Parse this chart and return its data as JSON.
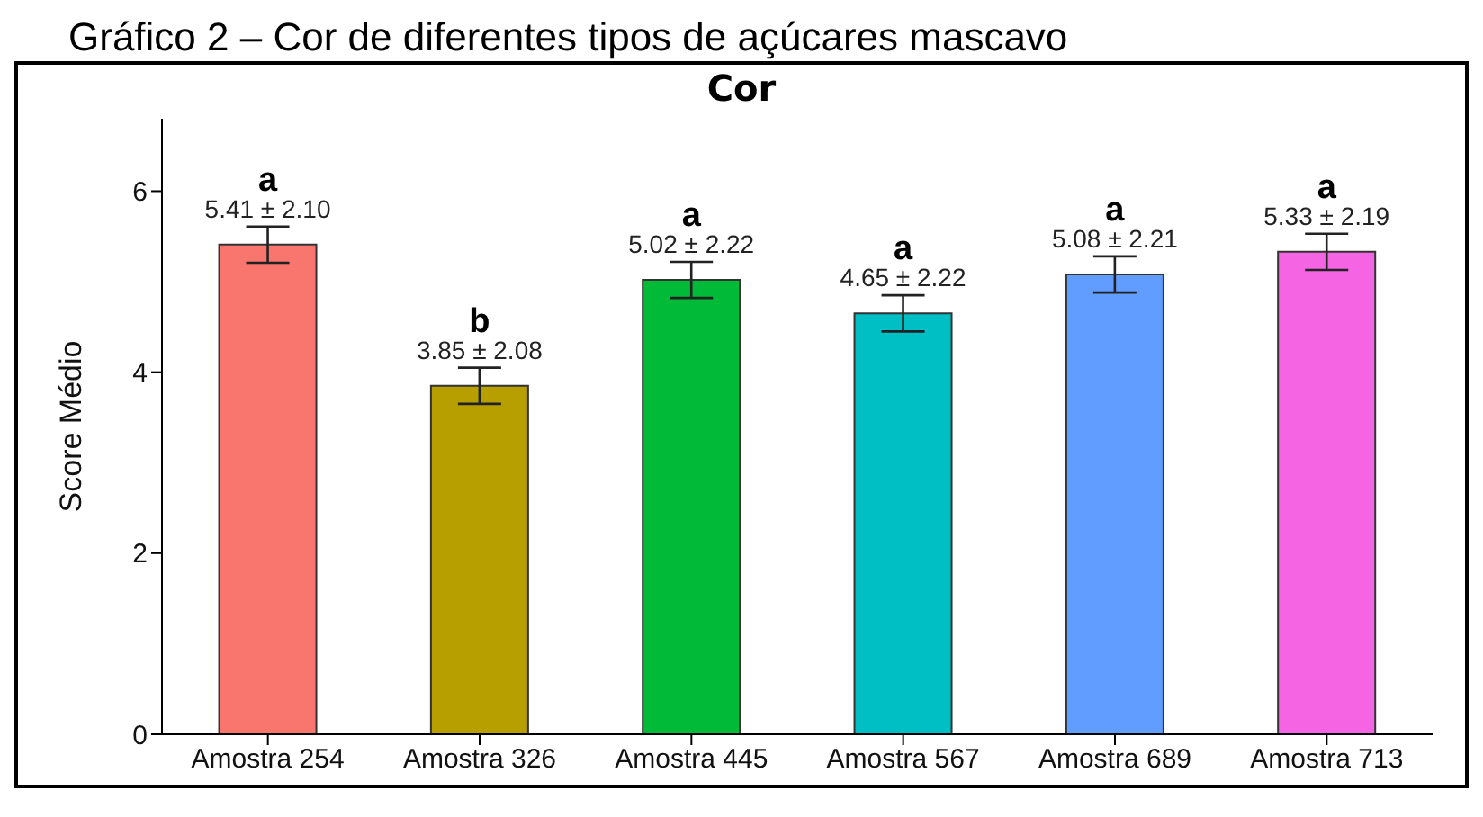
{
  "chart_data": {
    "type": "bar",
    "title": "Gráfico 2 – Cor de diferentes tipos de açúcares mascavo",
    "subtitle": "Cor",
    "ylabel": "Score Médio",
    "categories": [
      "Amostra 254",
      "Amostra 326",
      "Amostra 445",
      "Amostra 567",
      "Amostra 689",
      "Amostra 713"
    ],
    "values": [
      5.41,
      3.85,
      5.02,
      4.65,
      5.08,
      5.33
    ],
    "colors": [
      "#f8766d",
      "#b79f00",
      "#00ba38",
      "#00bfc4",
      "#619cff",
      "#f564e3"
    ],
    "errors": [
      0.2,
      0.2,
      0.2,
      0.2,
      0.2,
      0.2
    ],
    "value_labels": [
      "5.41 ± 2.10",
      "3.85 ± 2.08",
      "5.02 ± 2.22",
      "4.65 ± 2.22",
      "5.08 ± 2.21",
      "5.33 ± 2.19"
    ],
    "annotations": [
      {
        "text": "a",
        "x": "Amostra 254",
        "y": 5.41
      },
      {
        "text": "b",
        "x": "Amostra 326",
        "y": 3.85
      },
      {
        "text": "a",
        "x": "Amostra 445",
        "y": 5.02
      },
      {
        "text": "a",
        "x": "Amostra 567",
        "y": 4.65
      },
      {
        "text": "a",
        "x": "Amostra 689",
        "y": 5.08
      },
      {
        "text": "a",
        "x": "Amostra 713",
        "y": 5.33
      }
    ],
    "ylim": [
      0,
      6.8
    ],
    "yticks": [
      0,
      2,
      4,
      6
    ],
    "grid": false,
    "legend": false
  }
}
